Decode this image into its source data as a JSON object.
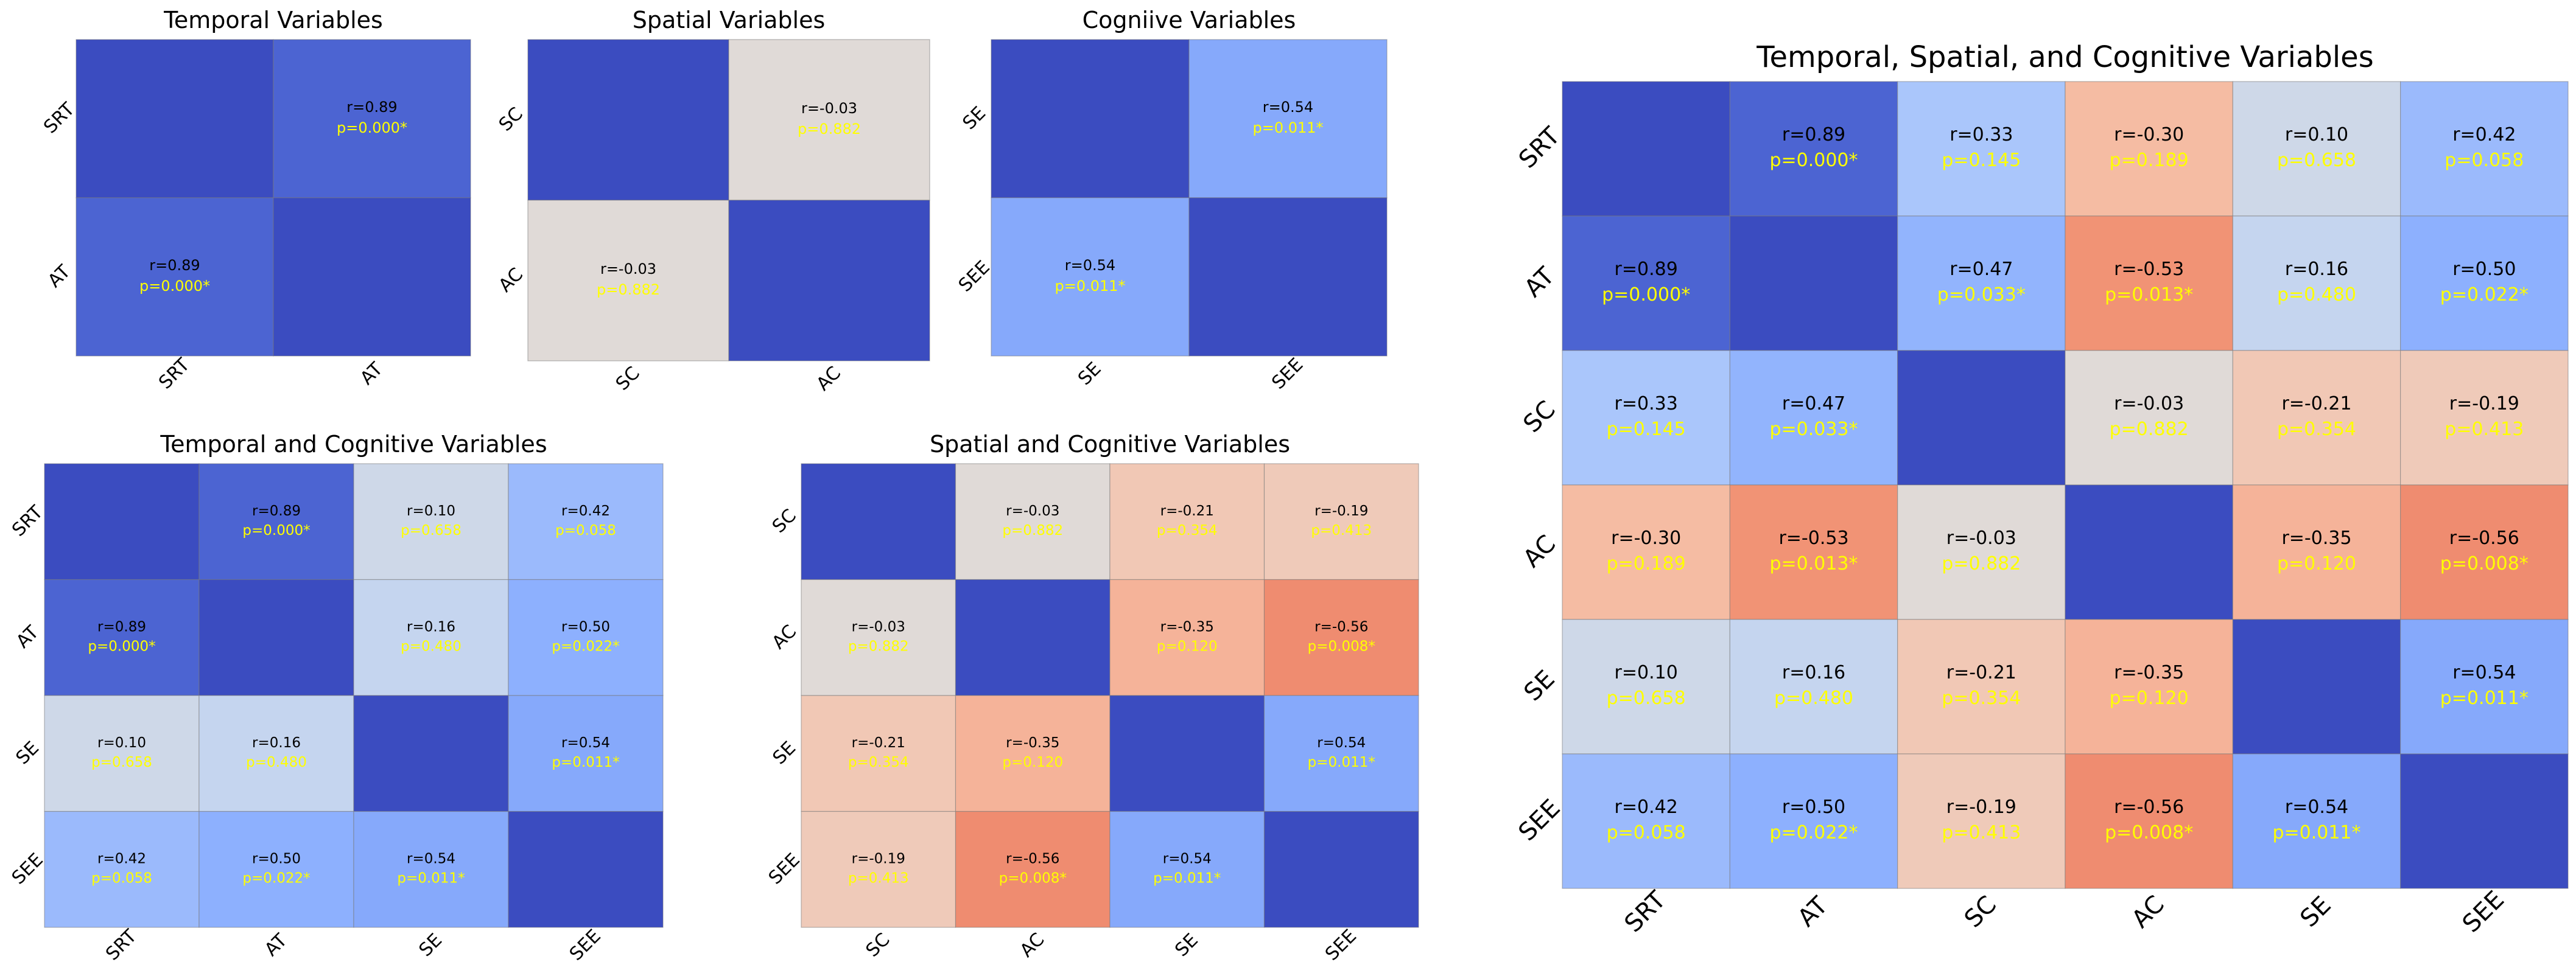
{
  "chart_data": [
    {
      "type": "heatmap",
      "title": "Temporal Variables",
      "variables": [
        "SRT",
        "AT"
      ],
      "r": [
        [
          1.0,
          0.89
        ],
        [
          0.89,
          1.0
        ]
      ],
      "r_labels": [
        [
          "",
          "r=0.89"
        ],
        [
          "r=0.89",
          ""
        ]
      ],
      "p_labels": [
        [
          "",
          "p=0.000*"
        ],
        [
          "p=0.000*",
          ""
        ]
      ],
      "colormap": "coolwarm",
      "value_range": [
        -1,
        1
      ],
      "colorbar": false
    },
    {
      "type": "heatmap",
      "title": "Spatial Variables",
      "variables": [
        "SC",
        "AC"
      ],
      "r": [
        [
          1.0,
          -0.03
        ],
        [
          -0.03,
          1.0
        ]
      ],
      "r_labels": [
        [
          "",
          "r=-0.03"
        ],
        [
          "r=-0.03",
          ""
        ]
      ],
      "p_labels": [
        [
          "",
          "p=0.882"
        ],
        [
          "p=0.882",
          ""
        ]
      ],
      "colormap": "coolwarm",
      "value_range": [
        -1,
        1
      ],
      "colorbar": false
    },
    {
      "type": "heatmap",
      "title": "Cogniive Variables",
      "variables": [
        "SE",
        "SEE"
      ],
      "r": [
        [
          1.0,
          0.54
        ],
        [
          0.54,
          1.0
        ]
      ],
      "r_labels": [
        [
          "",
          "r=0.54"
        ],
        [
          "r=0.54",
          ""
        ]
      ],
      "p_labels": [
        [
          "",
          "p=0.011*"
        ],
        [
          "p=0.011*",
          ""
        ]
      ],
      "colormap": "coolwarm",
      "value_range": [
        -1,
        1
      ],
      "colorbar": false
    },
    {
      "type": "heatmap",
      "title": "Temporal and Cognitive Variables",
      "variables": [
        "SRT",
        "AT",
        "SE",
        "SEE"
      ],
      "r": [
        [
          1.0,
          0.89,
          0.1,
          0.42
        ],
        [
          0.89,
          1.0,
          0.16,
          0.5
        ],
        [
          0.1,
          0.16,
          1.0,
          0.54
        ],
        [
          0.42,
          0.5,
          0.54,
          1.0
        ]
      ],
      "r_labels": [
        [
          "",
          "r=0.89",
          "r=0.10",
          "r=0.42"
        ],
        [
          "r=0.89",
          "",
          "r=0.16",
          "r=0.50"
        ],
        [
          "r=0.10",
          "r=0.16",
          "",
          "r=0.54"
        ],
        [
          "r=0.42",
          "r=0.50",
          "r=0.54",
          ""
        ]
      ],
      "p_labels": [
        [
          "",
          "p=0.000*",
          "p=0.658",
          "p=0.058"
        ],
        [
          "p=0.000*",
          "",
          "p=0.480",
          "p=0.022*"
        ],
        [
          "p=0.658",
          "p=0.480",
          "",
          "p=0.011*"
        ],
        [
          "p=0.058",
          "p=0.022*",
          "p=0.011*",
          ""
        ]
      ],
      "colormap": "coolwarm",
      "value_range": [
        -1,
        1
      ],
      "colorbar": false
    },
    {
      "type": "heatmap",
      "title": "Spatial and Cognitive Variables",
      "variables": [
        "SC",
        "AC",
        "SE",
        "SEE"
      ],
      "r": [
        [
          1.0,
          -0.03,
          -0.21,
          -0.19
        ],
        [
          -0.03,
          1.0,
          -0.35,
          -0.56
        ],
        [
          -0.21,
          -0.35,
          1.0,
          0.54
        ],
        [
          -0.19,
          -0.56,
          0.54,
          1.0
        ]
      ],
      "r_labels": [
        [
          "",
          "r=-0.03",
          "r=-0.21",
          "r=-0.19"
        ],
        [
          "r=-0.03",
          "",
          "r=-0.35",
          "r=-0.56"
        ],
        [
          "r=-0.21",
          "r=-0.35",
          "",
          "r=0.54"
        ],
        [
          "r=-0.19",
          "r=-0.56",
          "r=0.54",
          ""
        ]
      ],
      "p_labels": [
        [
          "",
          "p=0.882",
          "p=0.354",
          "p=0.413"
        ],
        [
          "p=0.882",
          "",
          "p=0.120",
          "p=0.008*"
        ],
        [
          "p=0.354",
          "p=0.120",
          "",
          "p=0.011*"
        ],
        [
          "p=0.413",
          "p=0.008*",
          "p=0.011*",
          ""
        ]
      ],
      "colormap": "coolwarm",
      "value_range": [
        -1,
        1
      ],
      "colorbar": false
    },
    {
      "type": "heatmap",
      "title": "Temporal, Spatial, and Cognitive Variables",
      "variables": [
        "SRT",
        "AT",
        "SC",
        "AC",
        "SE",
        "SEE"
      ],
      "r": [
        [
          1.0,
          0.89,
          0.33,
          -0.3,
          0.1,
          0.42
        ],
        [
          0.89,
          1.0,
          0.47,
          -0.53,
          0.16,
          0.5
        ],
        [
          0.33,
          0.47,
          1.0,
          -0.03,
          -0.21,
          -0.19
        ],
        [
          -0.3,
          -0.53,
          -0.03,
          1.0,
          -0.35,
          -0.56
        ],
        [
          0.1,
          0.16,
          -0.21,
          -0.35,
          1.0,
          0.54
        ],
        [
          0.42,
          0.5,
          -0.19,
          -0.56,
          0.54,
          1.0
        ]
      ],
      "r_labels": [
        [
          "",
          "r=0.89",
          "r=0.33",
          "r=-0.30",
          "r=0.10",
          "r=0.42"
        ],
        [
          "r=0.89",
          "",
          "r=0.47",
          "r=-0.53",
          "r=0.16",
          "r=0.50"
        ],
        [
          "r=0.33",
          "r=0.47",
          "",
          "r=-0.03",
          "r=-0.21",
          "r=-0.19"
        ],
        [
          "r=-0.30",
          "r=-0.53",
          "r=-0.03",
          "",
          "r=-0.35",
          "r=-0.56"
        ],
        [
          "r=0.10",
          "r=0.16",
          "r=-0.21",
          "r=-0.35",
          "",
          "r=0.54"
        ],
        [
          "r=0.42",
          "r=0.50",
          "r=-0.19",
          "r=-0.56",
          "r=0.54",
          ""
        ]
      ],
      "p_labels": [
        [
          "",
          "p=0.000*",
          "p=0.145",
          "p=0.189",
          "p=0.658",
          "p=0.058"
        ],
        [
          "p=0.000*",
          "",
          "p=0.033*",
          "p=0.013*",
          "p=0.480",
          "p=0.022*"
        ],
        [
          "p=0.145",
          "p=0.033*",
          "",
          "p=0.882",
          "p=0.354",
          "p=0.413"
        ],
        [
          "p=0.189",
          "p=0.013*",
          "p=0.882",
          "",
          "p=0.120",
          "p=0.008*"
        ],
        [
          "p=0.658",
          "p=0.480",
          "p=0.354",
          "p=0.120",
          "",
          "p=0.011*"
        ],
        [
          "p=0.058",
          "p=0.022*",
          "p=0.413",
          "p=0.008*",
          "p=0.011*",
          ""
        ]
      ],
      "colormap": "coolwarm",
      "value_range": [
        -1,
        1
      ],
      "colorbar": false
    }
  ]
}
